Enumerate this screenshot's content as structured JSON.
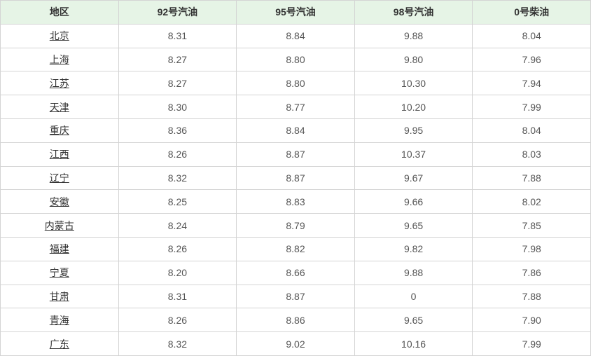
{
  "table": {
    "headers": [
      "地区",
      "92号汽油",
      "95号汽油",
      "98号汽油",
      "0号柴油"
    ],
    "rows": [
      {
        "region": "北京",
        "v92": "8.31",
        "v95": "8.84",
        "v98": "9.88",
        "d0": "8.04"
      },
      {
        "region": "上海",
        "v92": "8.27",
        "v95": "8.80",
        "v98": "9.80",
        "d0": "7.96"
      },
      {
        "region": "江苏",
        "v92": "8.27",
        "v95": "8.80",
        "v98": "10.30",
        "d0": "7.94"
      },
      {
        "region": "天津",
        "v92": "8.30",
        "v95": "8.77",
        "v98": "10.20",
        "d0": "7.99"
      },
      {
        "region": "重庆",
        "v92": "8.36",
        "v95": "8.84",
        "v98": "9.95",
        "d0": "8.04"
      },
      {
        "region": "江西",
        "v92": "8.26",
        "v95": "8.87",
        "v98": "10.37",
        "d0": "8.03"
      },
      {
        "region": "辽宁",
        "v92": "8.32",
        "v95": "8.87",
        "v98": "9.67",
        "d0": "7.88"
      },
      {
        "region": "安徽",
        "v92": "8.25",
        "v95": "8.83",
        "v98": "9.66",
        "d0": "8.02"
      },
      {
        "region": "内蒙古",
        "v92": "8.24",
        "v95": "8.79",
        "v98": "9.65",
        "d0": "7.85"
      },
      {
        "region": "福建",
        "v92": "8.26",
        "v95": "8.82",
        "v98": "9.82",
        "d0": "7.98"
      },
      {
        "region": "宁夏",
        "v92": "8.20",
        "v95": "8.66",
        "v98": "9.88",
        "d0": "7.86"
      },
      {
        "region": "甘肃",
        "v92": "8.31",
        "v95": "8.87",
        "v98": "0",
        "d0": "7.88"
      },
      {
        "region": "青海",
        "v92": "8.26",
        "v95": "8.86",
        "v98": "9.65",
        "d0": "7.90"
      },
      {
        "region": "广东",
        "v92": "8.32",
        "v95": "9.02",
        "v98": "10.16",
        "d0": "7.99"
      }
    ],
    "header_bg": "#e6f4e6",
    "border_color": "#d4d4d4",
    "link_color": "#333333"
  }
}
